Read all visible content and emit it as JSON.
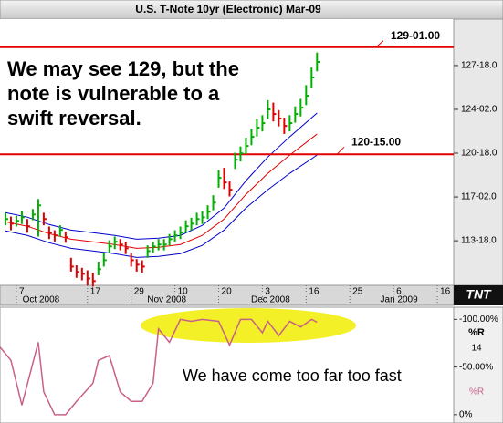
{
  "chart_data": [
    {
      "type": "ohlc",
      "title": "U.S. T-Note 10yr (Electronic) Mar-09",
      "x": [
        1,
        2,
        3,
        4,
        5,
        6,
        7,
        8,
        9,
        10,
        11,
        12,
        13,
        14,
        15,
        16,
        17,
        18,
        19,
        20,
        21,
        22,
        23,
        24,
        25,
        26,
        27,
        28,
        29,
        30,
        31,
        32,
        33,
        34,
        35,
        36,
        37,
        38,
        39,
        40,
        41,
        42,
        43,
        44,
        45,
        46,
        47,
        48,
        49,
        50,
        51,
        52,
        53,
        54,
        55,
        56,
        57,
        58
      ],
      "high": [
        115.8,
        115.5,
        115.55,
        115.9,
        115.3,
        116.1,
        116.9,
        115.8,
        114.7,
        114.4,
        114.8,
        114.3,
        112.2,
        111.6,
        111.4,
        111.2,
        111.0,
        111.9,
        112.6,
        113.6,
        113.9,
        113.7,
        113.5,
        112.6,
        112.1,
        112.0,
        113.2,
        113.5,
        113.7,
        113.7,
        114.1,
        114.4,
        114.7,
        115.2,
        115.4,
        115.8,
        115.9,
        116.4,
        117.2,
        119.2,
        119.4,
        118.3,
        120.6,
        121.1,
        121.8,
        122.5,
        123.3,
        123.6,
        124.8,
        124.6,
        124.0,
        123.4,
        123.6,
        124.3,
        124.9,
        126.0,
        127.4,
        128.6
      ],
      "low": [
        114.8,
        114.4,
        114.7,
        114.9,
        114.2,
        115.2,
        113.9,
        114.8,
        113.7,
        113.5,
        113.9,
        113.4,
        111.1,
        110.6,
        110.4,
        110.0,
        109.9,
        110.8,
        111.5,
        112.6,
        112.9,
        112.8,
        112.5,
        111.5,
        111.1,
        111.0,
        112.2,
        112.6,
        112.8,
        112.8,
        113.2,
        113.5,
        113.7,
        114.2,
        114.4,
        114.8,
        114.9,
        115.3,
        116.0,
        117.8,
        117.7,
        117.1,
        119.3,
        119.9,
        120.5,
        121.2,
        121.9,
        122.3,
        123.3,
        123.1,
        122.7,
        122.1,
        122.3,
        123.0,
        123.5,
        124.4,
        125.8,
        127.1
      ],
      "close": [
        115.3,
        114.93,
        115.15,
        115.44,
        114.72,
        115.66,
        116.39,
        115.3,
        114.21,
        113.99,
        114.43,
        113.84,
        111.5,
        111.07,
        110.92,
        110.55,
        110.34,
        111.29,
        112.01,
        113.11,
        113.48,
        113.26,
        112.96,
        112.01,
        111.65,
        111.5,
        112.74,
        113.11,
        113.26,
        113.26,
        113.69,
        113.99,
        114.21,
        114.72,
        114.93,
        115.3,
        115.44,
        115.88,
        116.61,
        118.59,
        118.22,
        117.64,
        120.04,
        120.55,
        121.14,
        121.87,
        122.6,
        122.96,
        124.06,
        123.69,
        123.33,
        122.74,
        122.96,
        123.69,
        124.2,
        125.15,
        126.61,
        127.85
      ],
      "up_color": "#00b000",
      "down_color": "#e00000",
      "overlays": [
        {
          "color": "#0000cc",
          "x": [
            1,
            5,
            9,
            13,
            17,
            21,
            25,
            29,
            33,
            37,
            41,
            45,
            49,
            53,
            58
          ],
          "values": [
            115.81,
            115.45,
            114.86,
            114.42,
            114.21,
            113.99,
            113.69,
            113.77,
            113.99,
            114.79,
            116.18,
            118.36,
            120.26,
            121.87,
            123.77
          ]
        },
        {
          "color": "#e00000",
          "x": [
            1,
            5,
            9,
            13,
            17,
            21,
            25,
            29,
            33,
            37,
            41,
            45,
            49,
            53,
            58
          ],
          "values": [
            115.08,
            114.72,
            114.13,
            113.69,
            113.48,
            113.26,
            112.96,
            113.04,
            113.26,
            113.99,
            115.3,
            117.27,
            118.95,
            120.41,
            122.09
          ]
        },
        {
          "color": "#0000cc",
          "x": [
            1,
            5,
            9,
            13,
            17,
            21,
            25,
            29,
            33,
            37,
            41,
            45,
            49,
            53,
            58
          ],
          "values": [
            114.35,
            113.99,
            113.4,
            112.96,
            112.75,
            112.53,
            112.23,
            112.31,
            112.53,
            113.19,
            114.42,
            116.18,
            117.64,
            118.95,
            120.41
          ]
        }
      ],
      "hlines": [
        {
          "value": 129.03125,
          "label": "129-01.00",
          "color": "#e00000"
        },
        {
          "value": 120.46875,
          "label": "120-15.00",
          "color": "#e00000"
        }
      ],
      "annotation": [
        "We may see 129, but the",
        "note is vulnerable to a",
        "swift reversal."
      ],
      "xlim": [
        0,
        83
      ],
      "xticks": [
        {
          "value": 3,
          "label": "7"
        },
        {
          "value": 16,
          "label": "17"
        },
        {
          "value": 24,
          "label": "29"
        },
        {
          "value": 32,
          "label": "10"
        },
        {
          "value": 40,
          "label": "20"
        },
        {
          "value": 48,
          "label": "3"
        },
        {
          "value": 56,
          "label": "16"
        },
        {
          "value": 64,
          "label": "25"
        },
        {
          "value": 72,
          "label": "6"
        },
        {
          "value": 80,
          "label": "16"
        }
      ],
      "month_labels": [
        {
          "value": 7.5,
          "label": "Oct 2008"
        },
        {
          "value": 30.5,
          "label": "Nov 2008"
        },
        {
          "value": 49.5,
          "label": "Dec 2008"
        },
        {
          "value": 73,
          "label": "Jan 2009"
        }
      ],
      "ylim": [
        110,
        131.2
      ],
      "yticks": [
        {
          "value": 113.5625,
          "label": "113-18.0"
        },
        {
          "value": 117.0625,
          "label": "117-02.0"
        },
        {
          "value": 120.5625,
          "label": "120-18.0"
        },
        {
          "value": 124.0625,
          "label": "124-02.0"
        },
        {
          "value": 127.5625,
          "label": "127-18.0"
        }
      ],
      "logo": "TNT"
    },
    {
      "type": "line",
      "indicator_label": "%R",
      "period": 14,
      "series": [
        {
          "name": "%R",
          "color": "#c8608a",
          "x": [
            0,
            2,
            4,
            7,
            8,
            10,
            12,
            14,
            17,
            18,
            20,
            22,
            24,
            26,
            28,
            29,
            31,
            33,
            35,
            37,
            40,
            42,
            44,
            46,
            48,
            49,
            51,
            53,
            55,
            57,
            58
          ],
          "values": [
            -71,
            -57,
            -10,
            -76,
            -24,
            0,
            0,
            -14,
            -33,
            -57,
            -62,
            -24,
            -14,
            -14,
            -33,
            -90,
            -76,
            -100,
            -98,
            -100,
            -98,
            -73,
            -100,
            -100,
            -86,
            -98,
            -83,
            -98,
            -92,
            -100,
            -97
          ]
        }
      ],
      "annotation": "We have come too far too fast",
      "xlim": [
        0,
        83
      ],
      "ylim": [
        3,
        -108
      ],
      "yticks": [
        {
          "value": -100,
          "label": "-100.00%"
        },
        {
          "value": -50,
          "label": "-50.00%"
        },
        {
          "value": 0,
          "label": "0%"
        }
      ]
    }
  ]
}
